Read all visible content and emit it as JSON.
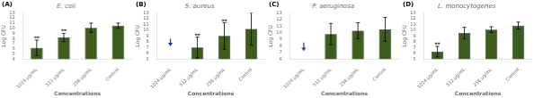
{
  "chart_data": [
    {
      "type": "bar",
      "title": "E. coli",
      "xlabel": "Concentrations",
      "ylabel": "Log CFU",
      "categories": [
        "1024 μg/mL",
        "512 μg/mL",
        "256 μg/mL",
        "Control"
      ],
      "values": [
        6.2,
        8.2,
        10.1,
        10.5
      ],
      "errors": [
        1.5,
        0.8,
        0.9,
        0.5
      ],
      "color": "#3d5c1e",
      "ylim": [
        4,
        13
      ],
      "yticks": [
        4,
        5,
        6,
        7,
        8,
        9,
        10,
        11,
        12,
        13
      ],
      "grid": false,
      "annotations": [
        {
          "text": "(A)"
        },
        {
          "text": "**",
          "x": "1024 μg/mL",
          "y": 7.5
        },
        {
          "text": "**",
          "x": "512 μg/mL",
          "y": 8.8
        }
      ]
    },
    {
      "type": "bar",
      "title": "S. aureus",
      "xlabel": "Concentrations",
      "ylabel": "Log CFU",
      "categories": [
        "1024 μg/mL",
        "512 μg/mL",
        "256 μg/mL",
        "Control"
      ],
      "values": [
        null,
        7.0,
        9.0,
        10.2
      ],
      "errors": [
        null,
        1.8,
        2.3,
        2.8
      ],
      "color": "#3d5c1e",
      "ylim": [
        5,
        13
      ],
      "yticks": [
        5,
        6,
        7,
        8,
        9,
        10,
        11,
        12,
        13
      ],
      "grid": false,
      "annotations": [
        {
          "text": "(B)"
        },
        {
          "text": "**",
          "x": "512 μg/mL",
          "y": 8.6
        },
        {
          "text": "**",
          "x": "256 μg/mL",
          "y": 11.0
        }
      ],
      "arrows": [
        {
          "x": "1024 μg/mL",
          "y": [
            8.5,
            7.2
          ],
          "color": "#1a3a8a"
        }
      ]
    },
    {
      "type": "bar",
      "title": "P. aeruginosa",
      "xlabel": "Concentrations",
      "ylabel": "Log CFU",
      "categories": [
        "1024 μg/mL",
        "512 μg/mL",
        "256 μg/mL",
        "Control"
      ],
      "values": [
        null,
        9.8,
        10.3,
        10.5
      ],
      "errors": [
        null,
        1.6,
        1.2,
        1.8
      ],
      "color": "#3d5c1e",
      "ylim": [
        6,
        13
      ],
      "yticks": [
        6,
        7,
        8,
        9,
        10,
        11,
        12,
        13
      ],
      "grid": false,
      "annotations": [
        {
          "text": "(C)"
        }
      ],
      "arrows": [
        {
          "x": "1024 μg/mL",
          "y": [
            8.5,
            7.2
          ],
          "color": "#1a3a8a"
        }
      ]
    },
    {
      "type": "bar",
      "title": "L. monocytogenes",
      "xlabel": "Concentrations",
      "ylabel": "Log CFU",
      "categories": [
        "1024 μg/mL",
        "512 μg/mL",
        "256 μg/mL",
        "Control"
      ],
      "values": [
        6.3,
        9.5,
        10.1,
        10.8
      ],
      "errors": [
        0.9,
        1.0,
        0.5,
        0.6
      ],
      "color": "#3d5c1e",
      "ylim": [
        5,
        13
      ],
      "yticks": [
        5,
        6,
        7,
        8,
        9,
        10,
        11,
        12,
        13
      ],
      "grid": false,
      "annotations": [
        {
          "text": "(D)"
        },
        {
          "text": "**",
          "x": "1024 μg/mL",
          "y": 7.0
        }
      ]
    }
  ]
}
